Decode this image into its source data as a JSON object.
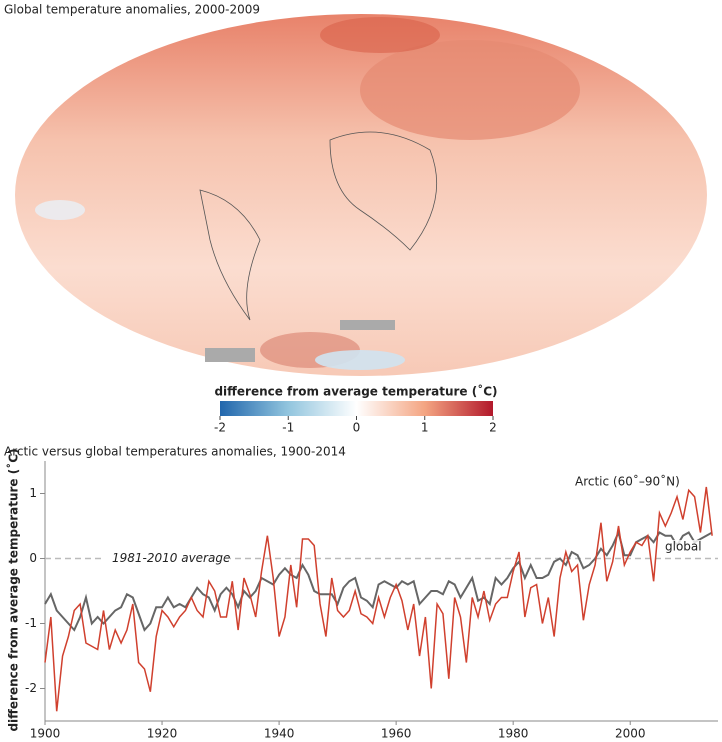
{
  "chart_data": [
    {
      "type": "map",
      "title": "Global temperature anomalies, 2000-2009",
      "colorbar_label": "difference from average temperature (˚C)",
      "colorbar_range": [
        -2,
        2
      ],
      "colorbar_ticks": [
        -2,
        -1,
        0,
        1,
        2
      ],
      "colorbar_colors": [
        "#2166ac",
        "#92c5de",
        "#ffffff",
        "#f4a582",
        "#b2182b"
      ]
    },
    {
      "type": "line",
      "title": "Arctic versus global temperatures anomalies, 1900-2014",
      "y_label": "difference from average temperature (˚C)",
      "annotation": "1981-2010 average",
      "reference": 0,
      "xlim": [
        1900,
        2015
      ],
      "xticks": [
        1900,
        1920,
        1940,
        1960,
        1980,
        2000
      ],
      "ylim": [
        -2.5,
        1.5
      ],
      "yticks": [
        -2,
        -1,
        0,
        1
      ],
      "x": [
        1900,
        1901,
        1902,
        1903,
        1904,
        1905,
        1906,
        1907,
        1908,
        1909,
        1910,
        1911,
        1912,
        1913,
        1914,
        1915,
        1916,
        1917,
        1918,
        1919,
        1920,
        1921,
        1922,
        1923,
        1924,
        1925,
        1926,
        1927,
        1928,
        1929,
        1930,
        1931,
        1932,
        1933,
        1934,
        1935,
        1936,
        1937,
        1938,
        1939,
        1940,
        1941,
        1942,
        1943,
        1944,
        1945,
        1946,
        1947,
        1948,
        1949,
        1950,
        1951,
        1952,
        1953,
        1954,
        1955,
        1956,
        1957,
        1958,
        1959,
        1960,
        1961,
        1962,
        1963,
        1964,
        1965,
        1966,
        1967,
        1968,
        1969,
        1970,
        1971,
        1972,
        1973,
        1974,
        1975,
        1976,
        1977,
        1978,
        1979,
        1980,
        1981,
        1982,
        1983,
        1984,
        1985,
        1986,
        1987,
        1988,
        1989,
        1990,
        1991,
        1992,
        1993,
        1994,
        1995,
        1996,
        1997,
        1998,
        1999,
        2000,
        2001,
        2002,
        2003,
        2004,
        2005,
        2006,
        2007,
        2008,
        2009,
        2010,
        2011,
        2012,
        2013,
        2014
      ],
      "series": [
        {
          "name": "Arctic (60˚–90˚N)",
          "color": "#d0402e",
          "values": [
            -1.6,
            -0.9,
            -2.35,
            -1.5,
            -1.2,
            -0.8,
            -0.7,
            -1.3,
            -1.35,
            -1.4,
            -0.8,
            -1.4,
            -1.1,
            -1.3,
            -1.1,
            -0.7,
            -1.6,
            -1.7,
            -2.05,
            -1.2,
            -0.8,
            -0.9,
            -1.05,
            -0.9,
            -0.8,
            -0.6,
            -0.8,
            -0.9,
            -0.35,
            -0.5,
            -0.9,
            -0.9,
            -0.35,
            -1.1,
            -0.3,
            -0.55,
            -0.9,
            -0.2,
            0.35,
            -0.3,
            -1.2,
            -0.9,
            -0.1,
            -0.75,
            0.3,
            0.3,
            0.2,
            -0.7,
            -1.2,
            -0.3,
            -0.8,
            -0.9,
            -0.8,
            -0.5,
            -0.85,
            -0.9,
            -1.0,
            -0.6,
            -0.9,
            -0.6,
            -0.4,
            -0.65,
            -1.1,
            -0.7,
            -1.5,
            -0.9,
            -2.0,
            -0.7,
            -0.85,
            -1.85,
            -0.6,
            -0.9,
            -1.6,
            -0.6,
            -0.9,
            -0.5,
            -0.95,
            -0.7,
            -0.6,
            -0.6,
            -0.2,
            0.1,
            -0.9,
            -0.45,
            -0.4,
            -1.0,
            -0.6,
            -1.2,
            -0.3,
            0.1,
            -0.2,
            -0.1,
            -0.95,
            -0.4,
            -0.1,
            0.55,
            -0.35,
            -0.05,
            0.5,
            -0.1,
            0.1,
            0.25,
            0.2,
            0.35,
            -0.35,
            0.7,
            0.5,
            0.7,
            0.95,
            0.6,
            1.05,
            0.95,
            0.4,
            1.1,
            0.35
          ]
        },
        {
          "name": "global",
          "color": "#666666",
          "values": [
            -0.7,
            -0.55,
            -0.8,
            -0.9,
            -1.0,
            -1.1,
            -0.9,
            -0.6,
            -1.0,
            -0.9,
            -1.0,
            -0.9,
            -0.8,
            -0.75,
            -0.55,
            -0.6,
            -0.85,
            -1.1,
            -1.0,
            -0.75,
            -0.75,
            -0.6,
            -0.75,
            -0.7,
            -0.75,
            -0.6,
            -0.45,
            -0.55,
            -0.6,
            -0.8,
            -0.55,
            -0.45,
            -0.55,
            -0.75,
            -0.5,
            -0.6,
            -0.5,
            -0.3,
            -0.35,
            -0.4,
            -0.25,
            -0.15,
            -0.25,
            -0.3,
            -0.1,
            -0.25,
            -0.5,
            -0.55,
            -0.55,
            -0.55,
            -0.7,
            -0.45,
            -0.35,
            -0.3,
            -0.6,
            -0.65,
            -0.75,
            -0.4,
            -0.35,
            -0.4,
            -0.45,
            -0.35,
            -0.4,
            -0.35,
            -0.7,
            -0.6,
            -0.5,
            -0.5,
            -0.55,
            -0.35,
            -0.4,
            -0.6,
            -0.45,
            -0.3,
            -0.65,
            -0.6,
            -0.7,
            -0.3,
            -0.4,
            -0.3,
            -0.15,
            -0.05,
            -0.3,
            -0.1,
            -0.3,
            -0.3,
            -0.25,
            -0.05,
            0.0,
            -0.1,
            0.1,
            0.05,
            -0.15,
            -0.1,
            0.0,
            0.15,
            0.05,
            0.2,
            0.4,
            0.05,
            0.05,
            0.25,
            0.3,
            0.35,
            0.25,
            0.4,
            0.35,
            0.35,
            0.2,
            0.35,
            0.4,
            0.25,
            0.3,
            0.35,
            0.4
          ]
        }
      ]
    }
  ]
}
